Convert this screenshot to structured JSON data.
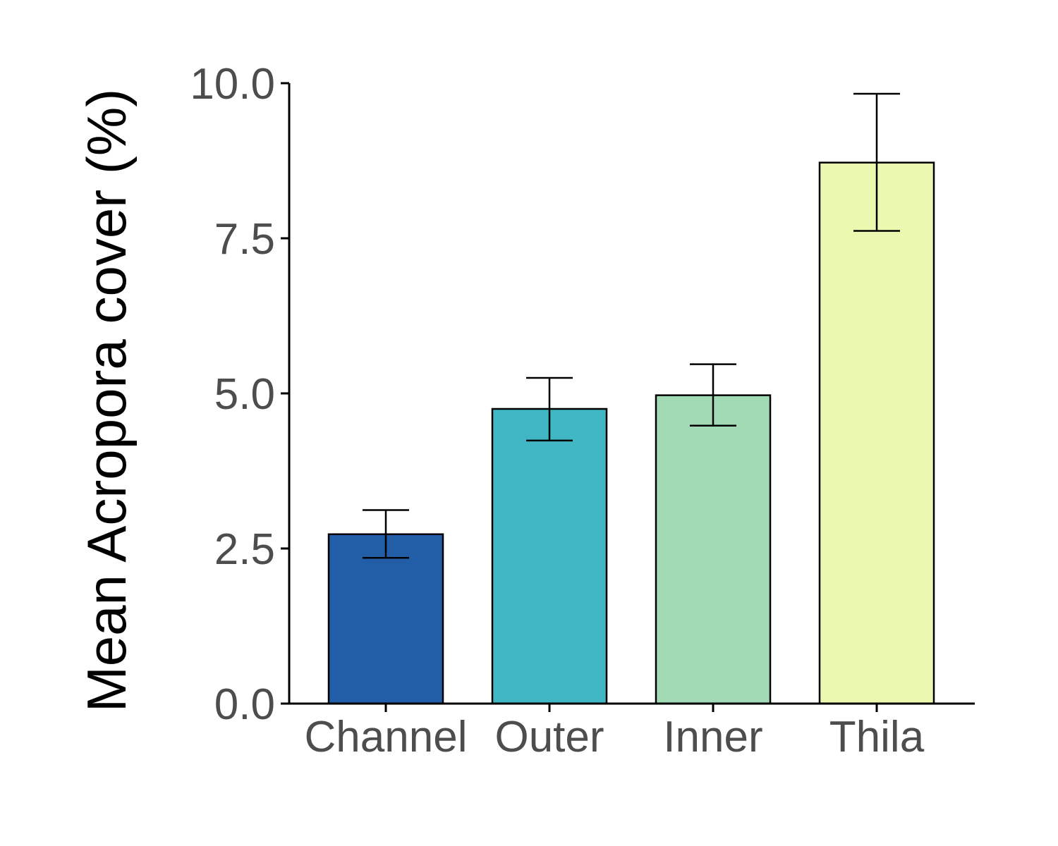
{
  "chart_data": {
    "type": "bar",
    "categories": [
      "Channel",
      "Outer",
      "Inner",
      "Thila"
    ],
    "values": [
      2.73,
      4.75,
      4.97,
      8.72
    ],
    "error_bars": {
      "lower": [
        2.35,
        4.24,
        4.48,
        7.62
      ],
      "upper": [
        3.12,
        5.25,
        5.47,
        9.83
      ]
    },
    "colors": [
      "#225ea8",
      "#41b6c4",
      "#a1dab4",
      "#ebf8b0"
    ],
    "title": "",
    "xlabel": "",
    "ylabel": "Mean Acropora cover (%)",
    "ylim": [
      0,
      10
    ],
    "yticks": [
      "0.0",
      "2.5",
      "5.0",
      "7.5",
      "10.0"
    ],
    "ytick_values": [
      0,
      2.5,
      5,
      7.5,
      10
    ],
    "grid": false,
    "legend": "none"
  }
}
